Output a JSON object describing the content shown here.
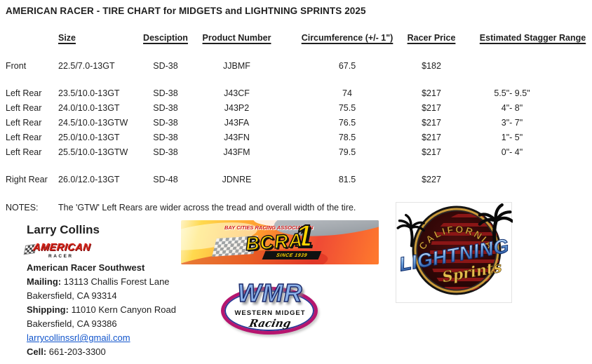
{
  "title": "AMERICAN RACER - TIRE CHART for MIDGETS and LIGHTNING SPRINTS 2025",
  "table": {
    "headers": [
      "Size",
      "Desciption",
      "Product Number",
      "Circumference (+/- 1\")",
      "Racer Price",
      "Estimated Stagger Range"
    ],
    "rows": [
      {
        "position": "Front",
        "size": "22.5/7.0-13GT",
        "description": "SD-38",
        "product_number": "JJBMF",
        "circumference": "67.5",
        "racer_price": "$182",
        "stagger": ""
      },
      {
        "position": "Left Rear",
        "size": "23.5/10.0-13GT",
        "description": "SD-38",
        "product_number": "J43CF",
        "circumference": "74",
        "racer_price": "$217",
        "stagger": "5.5\"- 9.5\""
      },
      {
        "position": "Left Rear",
        "size": "24.0/10.0-13GT",
        "description": "SD-38",
        "product_number": "J43P2",
        "circumference": "75.5",
        "racer_price": "$217",
        "stagger": "4\"- 8\""
      },
      {
        "position": "Left Rear",
        "size": "24.5/10.0-13GTW",
        "description": "SD-38",
        "product_number": "J43FA",
        "circumference": "76.5",
        "racer_price": "$217",
        "stagger": "3\"- 7\""
      },
      {
        "position": "Left Rear",
        "size": "25.0/10.0-13GT",
        "description": "SD-38",
        "product_number": "J43FN",
        "circumference": "78.5",
        "racer_price": "$217",
        "stagger": "1\"- 5\""
      },
      {
        "position": "Left Rear",
        "size": "25.5/10.0-13GTW",
        "description": "SD-38",
        "product_number": "J43FM",
        "circumference": "79.5",
        "racer_price": "$217",
        "stagger": "0\"- 4\""
      },
      {
        "position": "Right Rear",
        "size": "26.0/12.0-13GT",
        "description": "SD-48",
        "product_number": "JDNRE",
        "circumference": "81.5",
        "racer_price": "$227",
        "stagger": ""
      }
    ]
  },
  "notes": {
    "label": "NOTES:",
    "text": "The 'GTW' Left Rears are wider across the tread and overall width of the tire."
  },
  "contact": {
    "name": "Larry Collins",
    "company": "American Racer Southwest",
    "mailing_label": "Mailing:",
    "mailing_address": "13113 Challis Forest Lane",
    "mailing_city": "Bakersfield, CA 93314",
    "shipping_label": "Shipping:",
    "shipping_address": "11010 Kern Canyon Road",
    "shipping_city": "Bakersfield, CA 93386",
    "email": "larrycollinssrl@gmail.com",
    "cell_label": "Cell:",
    "cell_number": "661-203-3300"
  },
  "logos": {
    "american_racer": {
      "line1": "AMERICAN",
      "line2": "RACER"
    },
    "bcra": {
      "top_text": "BAY CITIES RACING ASSOCIATION",
      "acronym": "BCRA",
      "number": "1",
      "since": "SINCE 1939"
    },
    "wmr": {
      "acronym": "WMR",
      "line1": "WESTERN MIDGET",
      "line2": "Racing"
    },
    "lightning": {
      "arc_text": "CALIFORNIA",
      "line1": "LIGHTNING",
      "line2": "Sprints"
    }
  },
  "colors": {
    "text": "#1f1f1f",
    "link_blue": "#1155cc",
    "american_racer_red": "#d42318",
    "bcra_yellow": "#ffd400",
    "wmr_blue": "#8ab0e8",
    "wmr_ring_magenta": "#b6156e",
    "lightning_gold": "#d9a43b",
    "lightning_maroon": "#3a0a0a"
  }
}
